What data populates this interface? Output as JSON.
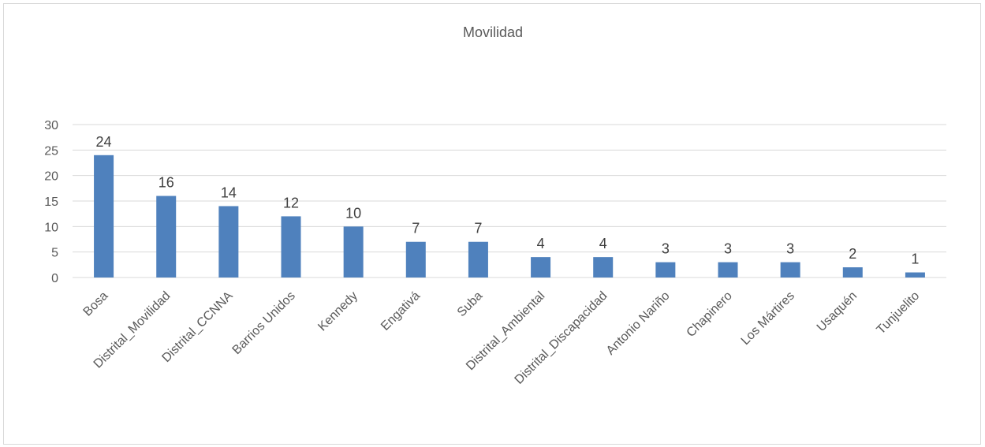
{
  "chart_data": {
    "type": "bar",
    "title": "Movilidad",
    "xlabel": "",
    "ylabel": "",
    "categories": [
      "Bosa",
      "Distrital_Movilidad",
      "Distrital_CCNNA",
      "Barrios Unidos",
      "Kennedy",
      "Engativá",
      "Suba",
      "Distrital_Ambiental",
      "Distrital_Discapacidad",
      "Antonio Nariño",
      "Chapinero",
      "Los Mártires",
      "Usaquén",
      "Tunjuelito"
    ],
    "values": [
      24,
      16,
      14,
      12,
      10,
      7,
      7,
      4,
      4,
      3,
      3,
      3,
      2,
      1
    ],
    "ylim": [
      0,
      30
    ],
    "yticks": [
      0,
      5,
      10,
      15,
      20,
      25,
      30
    ],
    "grid": true,
    "legend": "none",
    "data_labels": true,
    "bar_color": "#4f81bd",
    "grid_color": "#d9d9d9"
  }
}
